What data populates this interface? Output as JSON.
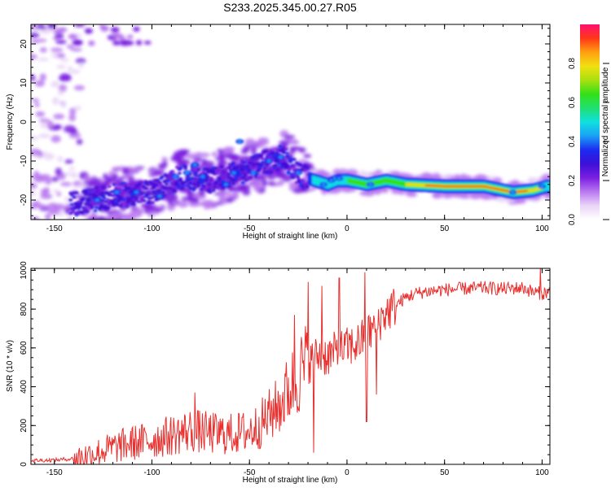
{
  "chart_data": [
    {
      "type": "heatmap",
      "title": "S233.2025.345.00.27.R05",
      "xlabel": "Height of straight line (km)",
      "ylabel": "Frequency (Hz)",
      "xlim": [
        -162,
        104
      ],
      "ylim": [
        -25,
        25
      ],
      "xticks": [
        -150,
        -100,
        -50,
        0,
        50,
        100
      ],
      "yticks": [
        -20,
        -10,
        0,
        10,
        20
      ],
      "colorbar": {
        "label": "Normalized spectral amplitude",
        "range": [
          0,
          1
        ],
        "ticks": [
          0.0,
          0.2,
          0.4,
          0.6,
          0.8
        ],
        "colors": [
          "#ffffff",
          "#e9d5f7",
          "#b978f0",
          "#7a1fe0",
          "#3c10d8",
          "#1b2cf0",
          "#1aa0f5",
          "#10e0e0",
          "#20e070",
          "#32e018",
          "#a8e010",
          "#f0e010",
          "#ffa010",
          "#ff3818",
          "#ff1070"
        ]
      },
      "ridge": [
        {
          "x": -140,
          "y": -21
        },
        {
          "x": -120,
          "y": -19
        },
        {
          "x": -100,
          "y": -18
        },
        {
          "x": -85,
          "y": -14
        },
        {
          "x": -70,
          "y": -15
        },
        {
          "x": -55,
          "y": -13
        },
        {
          "x": -40,
          "y": -10
        },
        {
          "x": -33,
          "y": -9
        },
        {
          "x": -25,
          "y": -13
        },
        {
          "x": -20,
          "y": -14.5
        },
        {
          "x": -10,
          "y": -16
        },
        {
          "x": -5,
          "y": -15
        },
        {
          "x": 0,
          "y": -15
        },
        {
          "x": 10,
          "y": -16
        },
        {
          "x": 20,
          "y": -15
        },
        {
          "x": 30,
          "y": -16
        },
        {
          "x": 50,
          "y": -16.5
        },
        {
          "x": 70,
          "y": -16.5
        },
        {
          "x": 85,
          "y": -18
        },
        {
          "x": 95,
          "y": -17.5
        },
        {
          "x": 102,
          "y": -16.5
        }
      ]
    },
    {
      "type": "line",
      "xlabel": "Height of straight line (km)",
      "ylabel": "SNR (10 * v/v)",
      "xlim": [
        -162,
        104
      ],
      "ylim": [
        0,
        1010
      ],
      "xticks": [
        -150,
        -100,
        -50,
        0,
        50,
        100
      ],
      "yticks": [
        0,
        200,
        400,
        600,
        800,
        1000
      ],
      "color": "#e8302e",
      "series": [
        {
          "name": "SNR",
          "x": [
            -162,
            -150,
            -140,
            -130,
            -120,
            -110,
            -100,
            -90,
            -80,
            -70,
            -60,
            -50,
            -45,
            -40,
            -35,
            -30,
            -25,
            -20,
            -15,
            -10,
            -5,
            0,
            5,
            10,
            15,
            20,
            25,
            30,
            35,
            40,
            50,
            60,
            70,
            80,
            90,
            95,
            100,
            104
          ],
          "values": [
            20,
            22,
            30,
            55,
            85,
            110,
            125,
            150,
            175,
            160,
            155,
            170,
            200,
            250,
            300,
            380,
            460,
            520,
            560,
            560,
            580,
            600,
            620,
            660,
            720,
            780,
            820,
            860,
            880,
            890,
            900,
            905,
            910,
            905,
            910,
            890,
            880,
            890
          ]
        }
      ],
      "spikes": [
        {
          "x": -78,
          "y": 370
        },
        {
          "x": -37,
          "y": 250
        },
        {
          "x": -27,
          "y": 770
        },
        {
          "x": -20,
          "y": 940
        },
        {
          "x": -17,
          "y": 60
        },
        {
          "x": -13,
          "y": 920
        },
        {
          "x": -4,
          "y": 960
        },
        {
          "x": 9,
          "y": 990
        },
        {
          "x": 10,
          "y": 220
        },
        {
          "x": 15,
          "y": 360
        },
        {
          "x": 99,
          "y": 1010
        }
      ]
    }
  ]
}
